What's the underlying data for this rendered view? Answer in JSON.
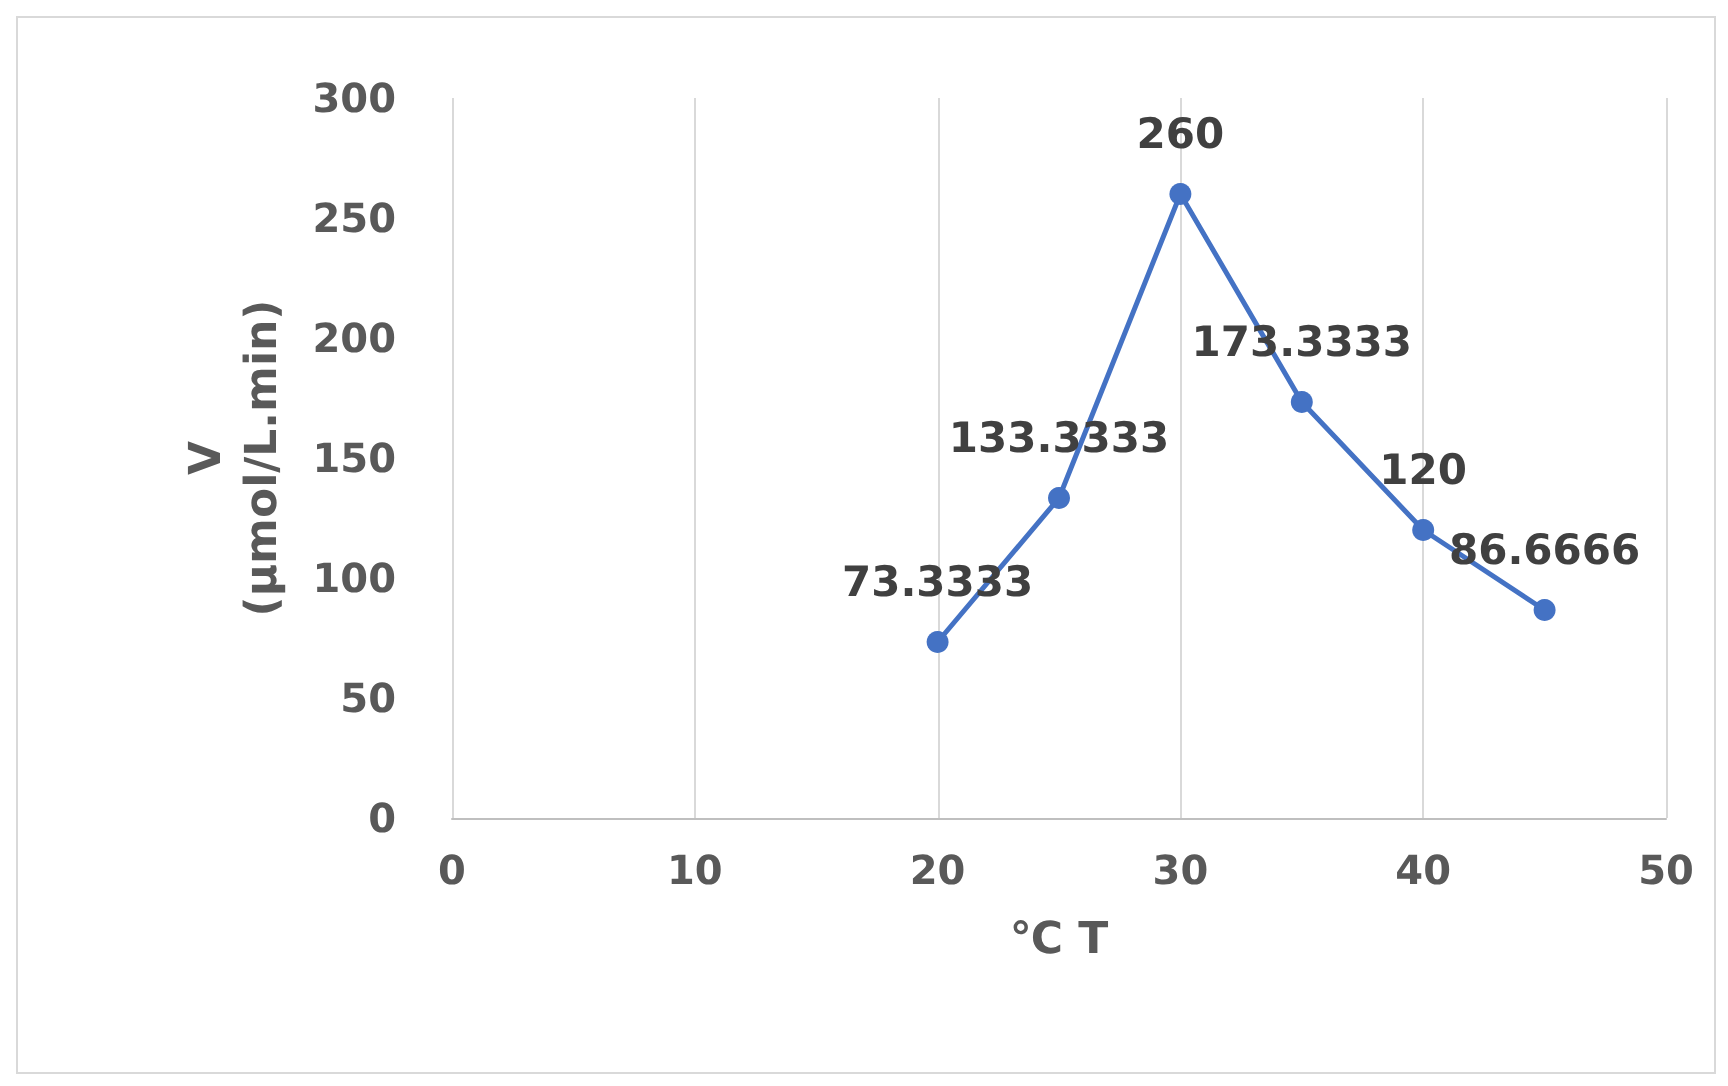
{
  "chart_data": {
    "type": "line",
    "xlabel": "℃ T",
    "ylabel": "V\n(μmol/L.min)",
    "x": [
      20,
      25,
      30,
      35,
      40,
      45
    ],
    "series": [
      {
        "color": "#4472c4",
        "values": [
          73.3333,
          133.3333,
          260,
          173.3333,
          120,
          86.6666
        ]
      }
    ],
    "xlim": [
      0,
      50
    ],
    "xticks": [
      0,
      10,
      20,
      30,
      40,
      50
    ],
    "ylim": [
      0,
      300
    ],
    "yticks": [
      0,
      50,
      100,
      150,
      200,
      250,
      300
    ],
    "grid": "x",
    "marker": "circle",
    "line_style": "solid",
    "data_labels": true
  }
}
